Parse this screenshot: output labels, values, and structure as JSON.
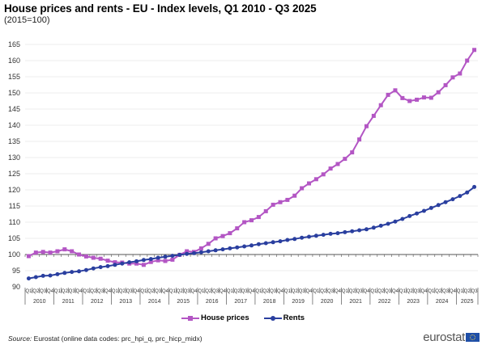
{
  "header": {
    "title": "House prices and rents - EU - Index levels, Q1 2010 - Q3 2025",
    "subtitle": "(2015=100)"
  },
  "legend": {
    "house_prices": "House prices",
    "rents": "Rents"
  },
  "footer": {
    "source_label": "Source:",
    "source_text": " Eurostat (online data codes: prc_hpi_q, prc_hicp_midx)",
    "logo_text": "eurostat"
  },
  "colors": {
    "house_prices": "#b356c4",
    "rents": "#2a3f9f",
    "grid": "#ececec",
    "baseline": "#555555"
  },
  "chart_data": {
    "type": "line",
    "title": "House prices and rents - EU - Index levels, Q1 2010 - Q3 2025",
    "subtitle": "(2015=100)",
    "xlabel": "",
    "ylabel": "",
    "ylim": [
      90,
      165
    ],
    "yticks": [
      90,
      95,
      100,
      105,
      110,
      115,
      120,
      125,
      130,
      135,
      140,
      145,
      150,
      155,
      160,
      165
    ],
    "grid": true,
    "reference_line": 100,
    "legend_position": "bottom-center",
    "years": [
      "2010",
      "2011",
      "2012",
      "2013",
      "2014",
      "2015",
      "2016",
      "2017",
      "2018",
      "2019",
      "2020",
      "2021",
      "2022",
      "2023",
      "2024",
      "2025"
    ],
    "quarters_per_year": [
      "Q1",
      "Q2",
      "Q3",
      "Q4"
    ],
    "last_year_quarters": 3,
    "x": [
      "2010Q1",
      "2010Q2",
      "2010Q3",
      "2010Q4",
      "2011Q1",
      "2011Q2",
      "2011Q3",
      "2011Q4",
      "2012Q1",
      "2012Q2",
      "2012Q3",
      "2012Q4",
      "2013Q1",
      "2013Q2",
      "2013Q3",
      "2013Q4",
      "2014Q1",
      "2014Q2",
      "2014Q3",
      "2014Q4",
      "2015Q1",
      "2015Q2",
      "2015Q3",
      "2015Q4",
      "2016Q1",
      "2016Q2",
      "2016Q3",
      "2016Q4",
      "2017Q1",
      "2017Q2",
      "2017Q3",
      "2017Q4",
      "2018Q1",
      "2018Q2",
      "2018Q3",
      "2018Q4",
      "2019Q1",
      "2019Q2",
      "2019Q3",
      "2019Q4",
      "2020Q1",
      "2020Q2",
      "2020Q3",
      "2020Q4",
      "2021Q1",
      "2021Q2",
      "2021Q3",
      "2021Q4",
      "2022Q1",
      "2022Q2",
      "2022Q3",
      "2022Q4",
      "2023Q1",
      "2023Q2",
      "2023Q3",
      "2023Q4",
      "2024Q1",
      "2024Q2",
      "2024Q3",
      "2024Q4",
      "2025Q1",
      "2025Q2",
      "2025Q3"
    ],
    "series": [
      {
        "name": "House prices",
        "marker": "square",
        "values": [
          99.5,
          100.6,
          100.8,
          100.6,
          101.0,
          101.6,
          101.0,
          100.0,
          99.4,
          99.0,
          98.7,
          98.1,
          97.6,
          97.5,
          97.2,
          97.2,
          96.8,
          97.7,
          98.2,
          98.0,
          98.4,
          99.9,
          101.0,
          100.8,
          101.9,
          103.3,
          105.0,
          105.7,
          106.6,
          108.1,
          110.0,
          110.6,
          111.6,
          113.4,
          115.4,
          116.2,
          116.9,
          118.2,
          120.5,
          122.0,
          123.3,
          124.8,
          126.6,
          128.0,
          129.6,
          131.6,
          135.6,
          139.7,
          142.9,
          146.2,
          149.4,
          150.8,
          148.4,
          147.5,
          147.9,
          148.6,
          148.5,
          150.2,
          152.4,
          154.8,
          156.0,
          160.0,
          163.3
        ]
      },
      {
        "name": "Rents",
        "marker": "circle",
        "values": [
          92.6,
          93.0,
          93.4,
          93.5,
          93.9,
          94.3,
          94.6,
          94.8,
          95.2,
          95.7,
          96.1,
          96.4,
          96.8,
          97.2,
          97.6,
          97.9,
          98.3,
          98.6,
          99.0,
          99.3,
          99.6,
          99.9,
          100.2,
          100.4,
          100.7,
          101.0,
          101.3,
          101.6,
          101.9,
          102.2,
          102.5,
          102.8,
          103.2,
          103.5,
          103.8,
          104.1,
          104.5,
          104.8,
          105.2,
          105.5,
          105.8,
          106.1,
          106.4,
          106.6,
          106.9,
          107.2,
          107.5,
          107.8,
          108.3,
          108.9,
          109.5,
          110.2,
          111.0,
          111.9,
          112.7,
          113.5,
          114.4,
          115.3,
          116.2,
          117.1,
          118.1,
          119.2,
          120.9
        ]
      }
    ]
  }
}
